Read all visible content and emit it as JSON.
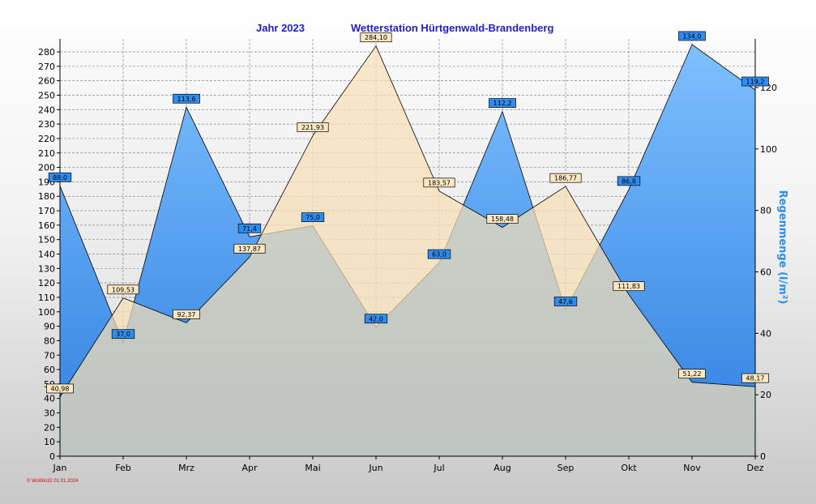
{
  "chart_data": {
    "type": "area",
    "title_left": "Jahr  2023",
    "title_right": "Wetterstation Hürtgenwald-Brandenberg",
    "categories": [
      "Jan",
      "Feb",
      "Mrz",
      "Apr",
      "Mai",
      "Jun",
      "Jul",
      "Aug",
      "Sep",
      "Okt",
      "Nov",
      "Dez"
    ],
    "y_left": {
      "min": 0,
      "max": 280,
      "ticks": [
        0,
        10,
        20,
        30,
        40,
        50,
        60,
        70,
        80,
        90,
        100,
        110,
        120,
        130,
        140,
        150,
        160,
        170,
        180,
        190,
        200,
        210,
        220,
        230,
        240,
        250,
        260,
        270,
        280
      ]
    },
    "y_right": {
      "label": "Regenmenge  (l/m²)",
      "min": 0,
      "max": 135,
      "ticks": [
        0,
        20,
        40,
        60,
        80,
        100,
        120
      ]
    },
    "grid": true,
    "series": [
      {
        "axis": "left",
        "color": "#f6dfb4",
        "values": [
          40.98,
          109.53,
          92.37,
          137.87,
          221.93,
          284.1,
          183.57,
          158.48,
          186.77,
          111.83,
          51.22,
          48.17
        ],
        "labels": [
          "40,98",
          "109,53",
          "92,37",
          "137,87",
          "221,93",
          "284,10",
          "183,57",
          "158,48",
          "186,77",
          "111,83",
          "51,22",
          "48,17"
        ]
      },
      {
        "axis": "right",
        "color": "#2f8cf0",
        "values": [
          88.0,
          37.0,
          113.6,
          71.4,
          75.0,
          42.0,
          63.0,
          112.2,
          47.6,
          86.8,
          134.0,
          119.2
        ],
        "labels": [
          "88,0",
          "37,0",
          "113,6",
          "71,4",
          "75,0",
          "42,0",
          "63,0",
          "112,2",
          "47,6",
          "86,8",
          "134,0",
          "119,2"
        ]
      }
    ]
  },
  "footer": {
    "copyright": "© WsWin32  01.01.2024"
  }
}
